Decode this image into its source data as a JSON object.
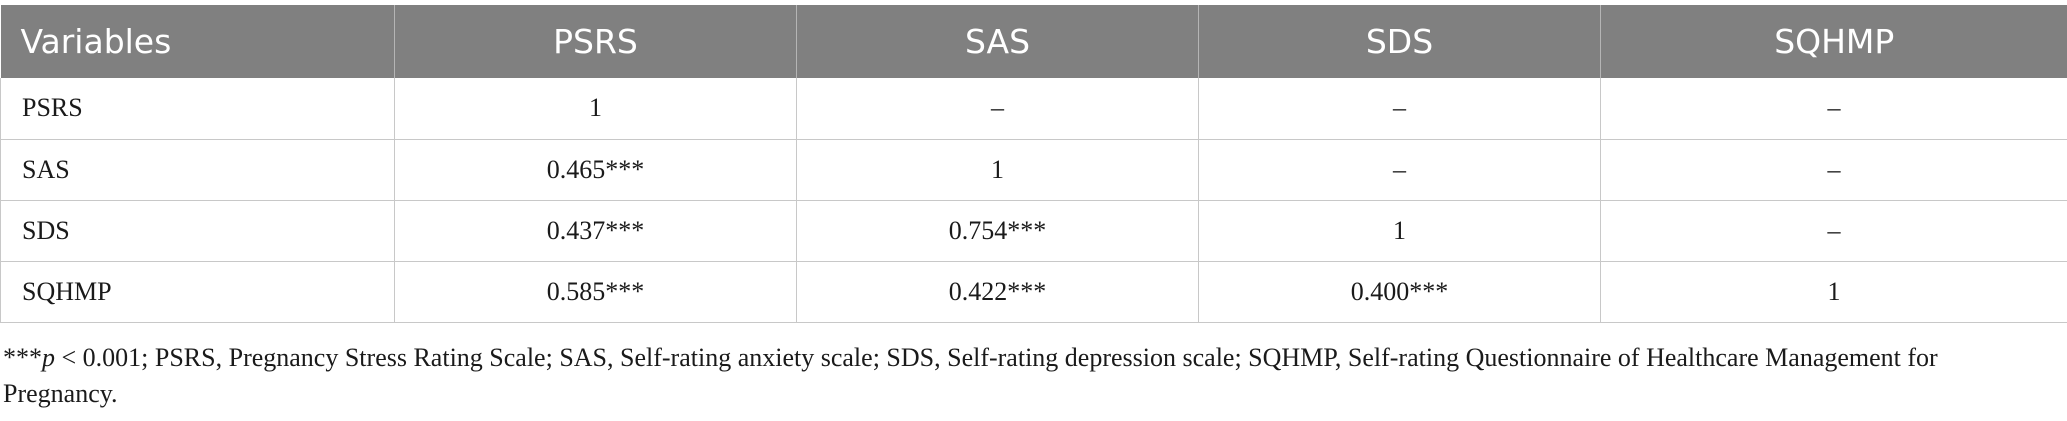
{
  "table": {
    "headers": [
      "Variables",
      "PSRS",
      "SAS",
      "SDS",
      "SQHMP"
    ],
    "rows": [
      [
        "PSRS",
        "1",
        "–",
        "–",
        "–"
      ],
      [
        "SAS",
        "0.465***",
        "1",
        "–",
        "–"
      ],
      [
        "SDS",
        "0.437***",
        "0.754***",
        "1",
        "–"
      ],
      [
        "SQHMP",
        "0.585***",
        "0.422***",
        "0.400***",
        "1"
      ]
    ],
    "header_bg": "#808080",
    "header_text_color": "#ffffff"
  },
  "footnote": {
    "stars": "***",
    "p_symbol": "p",
    "text": " < 0.001; PSRS, Pregnancy Stress Rating Scale; SAS, Self-rating anxiety scale; SDS, Self-rating depression scale; SQHMP, Self-rating Questionnaire of Healthcare Management for Pregnancy."
  }
}
